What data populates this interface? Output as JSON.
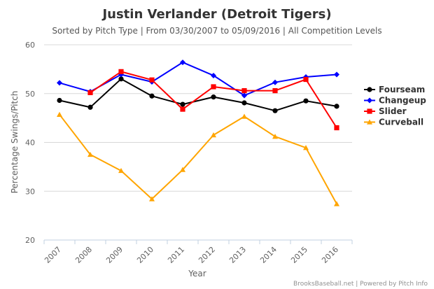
{
  "chart_data": {
    "type": "line",
    "title": "Justin Verlander (Detroit Tigers)",
    "subtitle": "Sorted by Pitch Type | From 03/30/2007 to 05/09/2016 | All Competition Levels",
    "xlabel": "Year",
    "ylabel": "Percentage Swings/Pitch",
    "categories": [
      "2007",
      "2008",
      "2009",
      "2010",
      "2011",
      "2012",
      "2013",
      "2014",
      "2015",
      "2016"
    ],
    "ylim": [
      20,
      60
    ],
    "yticks": [
      20,
      30,
      40,
      50,
      60
    ],
    "grid": "horizontal",
    "legend_position": "right",
    "series": [
      {
        "name": "Fourseam",
        "color": "#000000",
        "marker": "circle",
        "values": [
          48.6,
          47.2,
          53.0,
          49.5,
          47.8,
          49.3,
          48.1,
          46.5,
          48.5,
          47.4
        ]
      },
      {
        "name": "Changeup",
        "color": "#0000ff",
        "marker": "diamond",
        "values": [
          52.2,
          50.4,
          53.9,
          52.4,
          56.4,
          53.7,
          49.6,
          52.3,
          53.4,
          53.9
        ]
      },
      {
        "name": "Slider",
        "color": "#ff0000",
        "marker": "square",
        "values": [
          null,
          50.2,
          54.5,
          52.8,
          46.8,
          51.4,
          50.6,
          50.6,
          52.9,
          43.0
        ]
      },
      {
        "name": "Curveball",
        "color": "#ffa500",
        "marker": "triangle",
        "values": [
          45.7,
          37.5,
          34.2,
          28.4,
          34.4,
          41.5,
          45.3,
          41.2,
          38.9,
          27.4
        ]
      }
    ]
  },
  "credits": "BrooksBaseball.net | Powered by Pitch Info"
}
